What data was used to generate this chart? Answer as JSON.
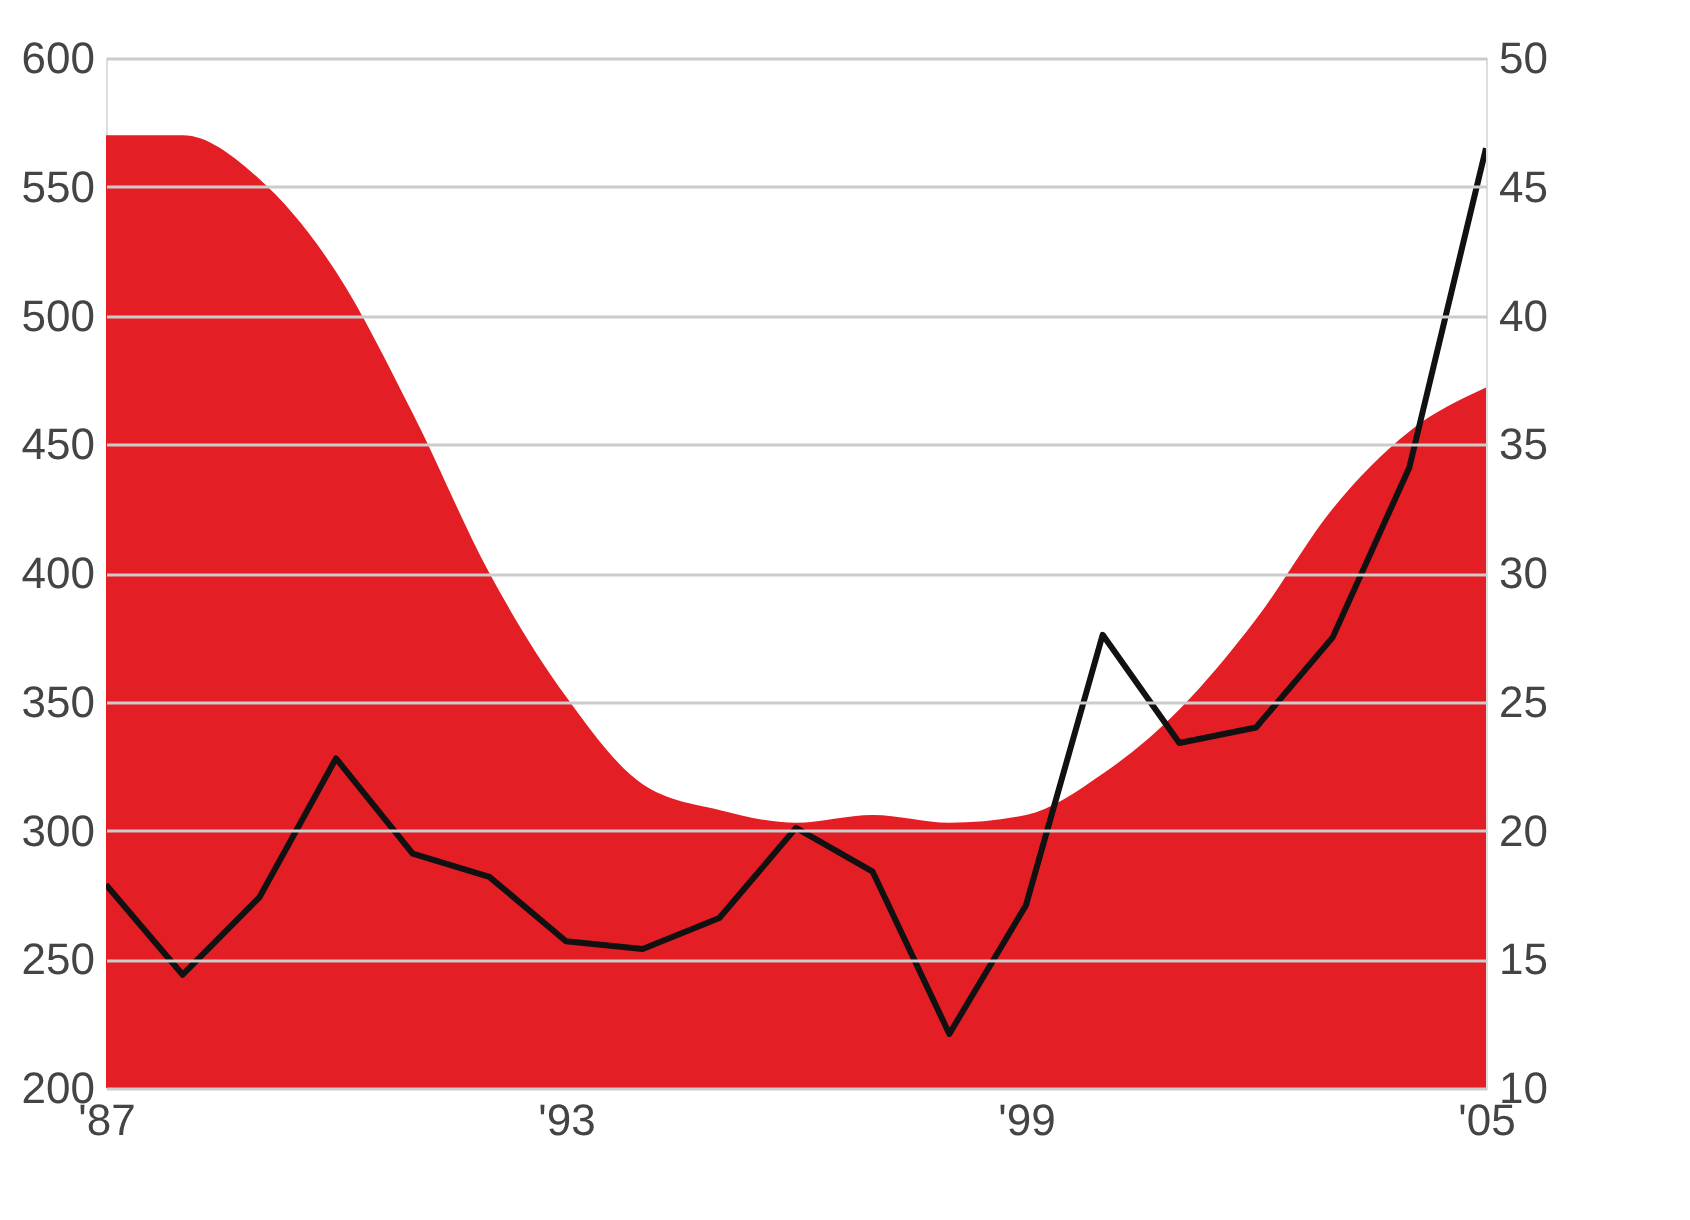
{
  "chart_data": {
    "type": "area",
    "x": [
      1987,
      1988,
      1989,
      1990,
      1991,
      1992,
      1993,
      1994,
      1995,
      1996,
      1997,
      1998,
      1999,
      2000,
      2001,
      2002,
      2003,
      2004,
      2005
    ],
    "series": [
      {
        "color": "#e31e24",
        "values": [
          570,
          570,
          553,
          517,
          462,
          400,
          352,
          318,
          308,
          303,
          306,
          303,
          306,
          322,
          347,
          382,
          425,
          455,
          472
        ]
      },
      {
        "type": "line",
        "axis": "y2",
        "color": "#111111",
        "values": [
          17.9,
          14.4,
          17.4,
          22.8,
          19.1,
          18.2,
          15.7,
          15.4,
          16.6,
          20.1,
          18.4,
          12.1,
          17.1,
          27.6,
          23.4,
          24.0,
          27.5,
          34.1,
          46.5
        ]
      }
    ],
    "xlim": [
      1987,
      2005
    ],
    "xticks": [
      {
        "value": 1987,
        "label": "'87"
      },
      {
        "value": 1993,
        "label": "'93"
      },
      {
        "value": 1999,
        "label": "'99"
      },
      {
        "value": 2005,
        "label": "'05"
      }
    ],
    "ylim": [
      200,
      600
    ],
    "yticks": [
      200,
      250,
      300,
      350,
      400,
      450,
      500,
      550,
      600
    ],
    "y2lim": [
      10,
      50
    ],
    "y2ticks": [
      10,
      15,
      20,
      25,
      30,
      35,
      40,
      45,
      50
    ],
    "grid": "y"
  }
}
